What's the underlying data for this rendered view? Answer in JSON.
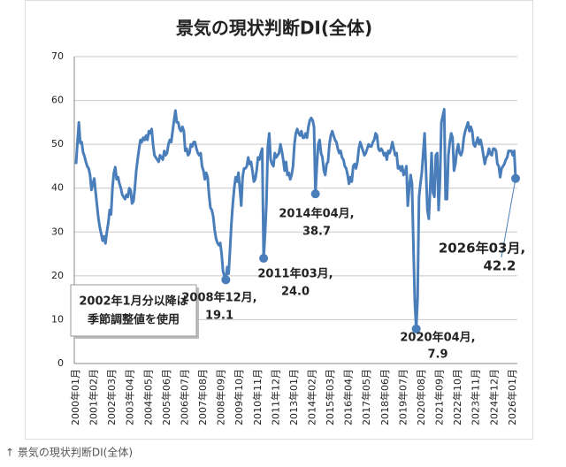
{
  "chart_data": {
    "type": "line",
    "title": "景気の現状判断DI(全体)",
    "categories": [
      "2000年01月",
      null,
      null,
      null,
      null,
      null,
      null,
      null,
      null,
      null,
      null,
      null,
      null,
      "2001年02月",
      null,
      null,
      null,
      null,
      null,
      null,
      null,
      null,
      null,
      null,
      null,
      null,
      "2002年03月",
      null,
      null,
      null,
      null,
      null,
      null,
      null,
      null,
      null,
      null,
      null,
      null,
      "2003年04月",
      null,
      null,
      null,
      null,
      null,
      null,
      null,
      null,
      null,
      null,
      null,
      null,
      "2004年05月",
      null,
      null,
      null,
      null,
      null,
      null,
      null,
      null,
      null,
      null,
      null,
      null,
      "2005年06月",
      null,
      null,
      null,
      null,
      null,
      null,
      null,
      null,
      null,
      null,
      null,
      null,
      "2006年07月",
      null,
      null,
      null,
      null,
      null,
      null,
      null,
      null,
      null,
      null,
      null,
      null,
      "2007年08月",
      null,
      null,
      null,
      null,
      null,
      null,
      null,
      null,
      null,
      null,
      null,
      null,
      "2008年09月",
      null,
      null,
      null,
      null,
      null,
      null,
      null,
      null,
      null,
      null,
      null,
      null,
      "2009年10月",
      null,
      null,
      null,
      null,
      null,
      null,
      null,
      null,
      null,
      null,
      null,
      null,
      "2010年11月",
      null,
      null,
      null,
      null,
      null,
      null,
      null,
      null,
      null,
      null,
      null,
      null,
      "2011年12月",
      null,
      null,
      null,
      null,
      null,
      null,
      null,
      null,
      null,
      null,
      null,
      null,
      "2013年01月",
      null,
      null,
      null,
      null,
      null,
      null,
      null,
      null,
      null,
      null,
      null,
      null,
      "2014年02月",
      null,
      null,
      null,
      null,
      null,
      null,
      null,
      null,
      null,
      null,
      null,
      null,
      "2015年03月",
      null,
      null,
      null,
      null,
      null,
      null,
      null,
      null,
      null,
      null,
      null,
      null,
      "2016年04月",
      null,
      null,
      null,
      null,
      null,
      null,
      null,
      null,
      null,
      null,
      null,
      null,
      "2017年05月",
      null,
      null,
      null,
      null,
      null,
      null,
      null,
      null,
      null,
      null,
      null,
      null,
      "2018年06月",
      null,
      null,
      null,
      null,
      null,
      null,
      null,
      null,
      null,
      null,
      null,
      null,
      "2019年07月",
      null,
      null,
      null,
      null,
      null,
      null,
      null,
      null,
      null,
      null,
      null,
      null,
      "2020年08月",
      null,
      null,
      null,
      null,
      null,
      null,
      null,
      null,
      null,
      null,
      null,
      null,
      "2021年09月",
      null,
      null,
      null,
      null,
      null,
      null,
      null,
      null,
      null,
      null,
      null,
      null,
      "2022年10月",
      null,
      null,
      null,
      null,
      null,
      null,
      null,
      null,
      null,
      null,
      null,
      null,
      "2023年11月",
      null,
      null,
      null,
      null,
      null,
      null,
      null,
      null,
      null,
      null,
      null,
      null,
      "2024年12月",
      null,
      null,
      null,
      null,
      null,
      null,
      null,
      null,
      null,
      null,
      null,
      null,
      "2026年01月",
      null,
      null
    ],
    "series": [
      {
        "color": "#4a7ebb",
        "values": [
          45.5,
          50.5,
          55.0,
          50.3,
          50.5,
          48.2,
          47.3,
          46.0,
          45.0,
          44.5,
          43.0,
          39.6,
          41.0,
          42.2,
          39.0,
          36.0,
          33.0,
          31.0,
          29.5,
          28.0,
          29.0,
          27.4,
          30.0,
          32.0,
          35.0,
          34.0,
          40.0,
          43.5,
          44.8,
          42.0,
          42.5,
          41.0,
          40.0,
          38.5,
          38.0,
          37.5,
          38.5,
          38.0,
          40.0,
          39.5,
          36.5,
          37.0,
          40.0,
          44.0,
          46.5,
          49.0,
          51.0,
          50.5,
          51.5,
          51.0,
          52.0,
          51.0,
          53.0,
          52.5,
          53.5,
          50.0,
          47.5,
          47.0,
          46.5,
          46.0,
          47.5,
          47.0,
          46.5,
          48.5,
          47.5,
          48.0,
          50.0,
          51.0,
          50.5,
          53.0,
          55.5,
          57.7,
          55.0,
          55.0,
          53.5,
          53.0,
          54.0,
          53.0,
          48.5,
          49.0,
          47.5,
          48.0,
          50.0,
          49.5,
          50.5,
          50.5,
          49.0,
          48.0,
          47.5,
          48.0,
          45.0,
          44.0,
          42.0,
          43.5,
          42.5,
          38.5,
          35.5,
          35.0,
          33.5,
          30.5,
          28.5,
          27.5,
          27.0,
          27.5,
          25.0,
          21.0,
          20.0,
          19.1,
          22.0,
          20.5,
          26.0,
          32.0,
          36.5,
          40.0,
          42.5,
          41.5,
          43.5,
          40.0,
          36.0,
          42.5,
          44.5,
          44.5,
          45.0,
          47.0,
          45.5,
          46.0,
          44.0,
          41.5,
          42.0,
          44.0,
          47.0,
          46.5,
          48.0,
          49.0,
          24.0,
          29.5,
          36.5,
          49.5,
          52.5,
          46.5,
          45.5,
          45.0,
          48.0,
          47.0,
          47.5,
          48.0,
          50.0,
          48.5,
          46.5,
          44.0,
          46.0,
          43.0,
          43.5,
          42.0,
          43.0,
          45.0,
          50.0,
          52.5,
          53.5,
          52.5,
          52.0,
          53.0,
          51.5,
          51.5,
          52.5,
          51.5,
          54.0,
          55.5,
          56.0,
          55.5,
          54.0,
          38.7,
          45.0,
          50.0,
          51.0,
          48.0,
          47.0,
          44.0,
          43.0,
          45.5,
          46.0,
          50.0,
          52.0,
          53.0,
          52.0,
          51.0,
          50.5,
          49.0,
          48.0,
          48.5,
          47.0,
          46.5,
          45.0,
          44.5,
          43.0,
          41.0,
          42.5,
          41.5,
          45.0,
          45.5,
          44.5,
          46.0,
          49.0,
          50.5,
          49.5,
          48.5,
          47.5,
          48.0,
          49.0,
          50.0,
          49.5,
          49.5,
          50.5,
          51.0,
          52.5,
          52.0,
          49.0,
          48.5,
          49.0,
          48.5,
          47.5,
          48.0,
          46.5,
          48.5,
          48.0,
          49.0,
          50.5,
          49.0,
          47.5,
          48.0,
          44.5,
          45.0,
          44.0,
          45.0,
          43.0,
          43.5,
          45.0,
          36.0,
          40.0,
          43.0,
          41.0,
          27.0,
          14.0,
          7.9,
          15.0,
          38.0,
          41.0,
          43.5,
          48.0,
          52.5,
          44.0,
          35.0,
          33.0,
          40.0,
          48.0,
          39.0,
          38.0,
          47.5,
          48.0,
          35.0,
          42.0,
          55.0,
          56.5,
          58.0,
          37.5,
          37.5,
          47.5,
          50.5,
          52.5,
          51.5,
          44.0,
          45.5,
          48.5,
          50.0,
          48.0,
          47.5,
          48.5,
          51.5,
          53.0,
          54.0,
          55.0,
          53.0,
          54.0,
          53.0,
          50.0,
          49.5,
          50.5,
          51.5,
          50.0,
          51.0,
          49.5,
          47.5,
          45.5,
          47.0,
          47.5,
          49.0,
          47.8,
          47.5,
          49.0,
          49.0,
          48.5,
          45.5,
          45.0,
          42.5,
          44.5,
          45.0,
          45.5,
          46.5,
          47.0,
          48.5,
          48.5,
          48.5,
          47.5,
          48.5,
          42.2
        ],
        "value_labels": [
          null,
          null,
          null,
          null,
          null,
          null,
          null,
          null,
          null,
          null,
          null,
          null,
          null,
          null,
          null,
          null,
          null,
          null,
          null,
          null,
          null,
          null,
          null,
          null,
          null,
          null,
          null,
          null,
          null,
          null,
          null,
          null,
          null,
          null,
          null,
          null,
          null,
          null,
          null,
          null,
          null,
          null,
          null,
          null,
          null,
          null,
          null,
          null,
          null,
          null,
          null,
          null,
          null,
          null,
          null,
          null,
          null,
          null,
          null,
          null,
          null,
          null,
          null,
          null,
          null,
          null,
          null,
          null,
          null,
          null,
          null,
          null,
          null,
          null,
          null,
          null,
          null,
          null,
          null,
          null,
          null,
          null,
          null,
          null,
          null,
          null,
          null,
          null,
          null,
          null,
          null,
          null,
          null,
          null,
          null,
          null,
          null,
          null,
          null,
          null,
          null,
          null,
          null,
          null,
          null,
          null,
          null,
          "19.1",
          null,
          null,
          null,
          null,
          null,
          null,
          null,
          null,
          null,
          null,
          null,
          null,
          null,
          null,
          null,
          null,
          null,
          null,
          null,
          null,
          null,
          null,
          null,
          null,
          null,
          null,
          "24.0",
          null,
          null,
          null,
          null,
          null,
          null,
          null,
          null,
          null,
          null,
          null,
          null,
          null,
          null,
          null,
          null,
          null,
          null,
          null,
          null,
          null,
          null,
          null,
          null,
          null,
          null,
          null,
          null,
          null,
          null,
          null,
          null,
          null,
          null,
          null,
          null,
          "38.7",
          null,
          null,
          null,
          null,
          null,
          null,
          null,
          null,
          null,
          null,
          null,
          null,
          null,
          null,
          null,
          null,
          null,
          null,
          null,
          null,
          null,
          null,
          null,
          null,
          null,
          null,
          null,
          null,
          null,
          null,
          null,
          null,
          null,
          null,
          null,
          null,
          null,
          null,
          null,
          null,
          null,
          null,
          null,
          null,
          null,
          null,
          null,
          null,
          null,
          null,
          null,
          null,
          null,
          null,
          null,
          null,
          null,
          null,
          null,
          null,
          null,
          null,
          null,
          null,
          null,
          null,
          null,
          null,
          null,
          null,
          null,
          "7.9",
          null,
          null,
          null,
          null,
          null,
          null,
          null,
          null,
          null,
          null,
          null,
          null,
          null,
          null,
          null,
          null,
          null,
          null,
          null,
          null,
          null,
          null,
          null,
          null,
          null,
          null,
          null,
          null,
          null,
          null,
          null,
          null,
          null,
          null,
          null,
          null,
          null,
          null,
          null,
          null,
          null,
          null,
          null,
          null,
          null,
          null,
          null,
          null,
          null,
          null,
          null,
          null,
          null,
          null,
          null,
          null,
          null,
          null,
          null,
          null,
          null,
          null,
          null,
          null,
          null,
          null,
          null,
          null,
          null,
          null,
          "42.2"
        ]
      }
    ],
    "annotations": [
      "2008年12月,",
      "2011年03月,",
      "2014年04月,",
      "2020年04月,",
      "2026年03月,"
    ],
    "note": [
      "2002年1月分以降は",
      "季節調整値を使用"
    ],
    "ylim": [
      0,
      70
    ],
    "yticks": [
      0,
      10,
      20,
      30,
      40,
      50,
      60,
      70
    ],
    "grid": true
  },
  "caption": "↑ 景気の現状判断DI(全体)"
}
